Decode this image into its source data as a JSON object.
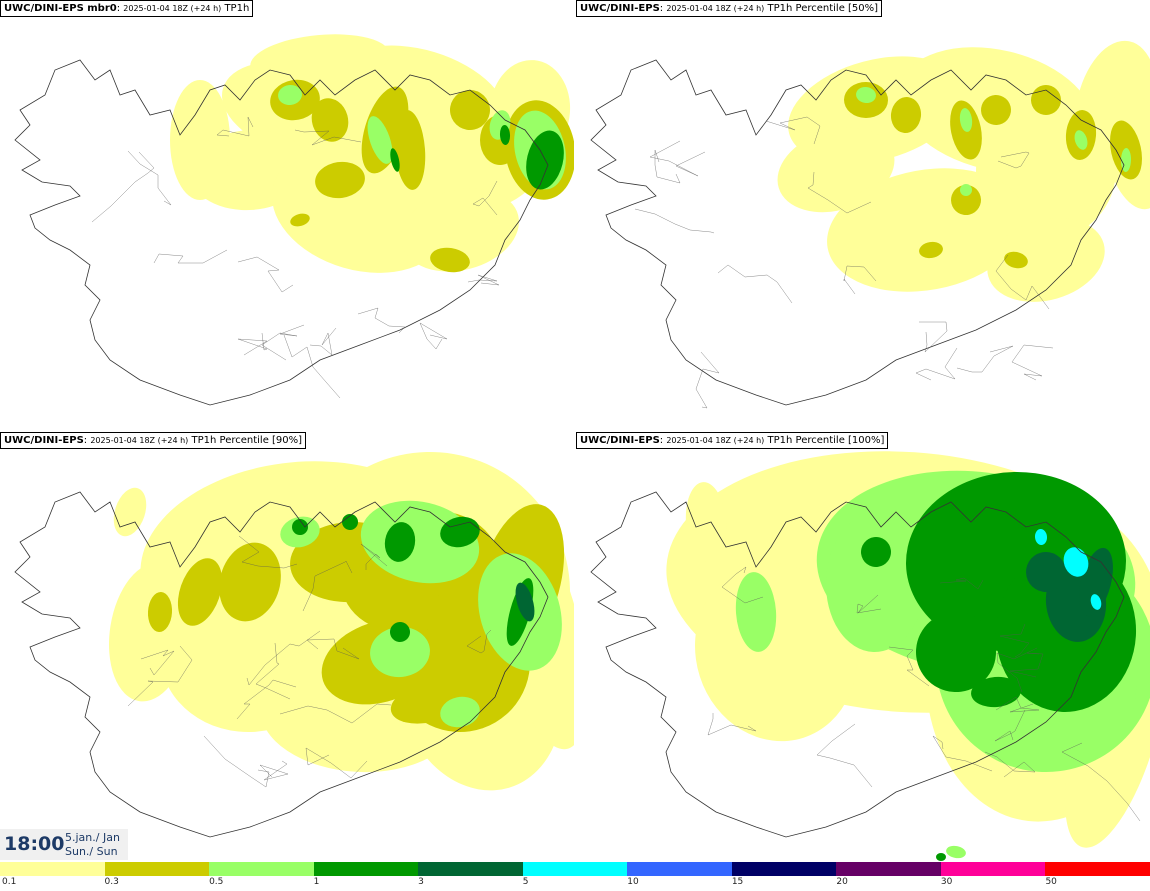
{
  "panels": [
    {
      "model": "UWC/DINI-EPS mbr0",
      "run": "2025-01-04 18Z (+24 h)",
      "field": "TP1h",
      "variant": "mbr0"
    },
    {
      "model": "UWC/DINI-EPS",
      "run": "2025-01-04 18Z (+24 h)",
      "field": "TP1h Percentile [50%]",
      "variant": "p50"
    },
    {
      "model": "UWC/DINI-EPS",
      "run": "2025-01-04 18Z (+24 h)",
      "field": "TP1h Percentile [90%]",
      "variant": "p90"
    },
    {
      "model": "UWC/DINI-EPS",
      "run": "2025-01-04 18Z (+24 h)",
      "field": "TP1h Percentile [100%]",
      "variant": "p100"
    }
  ],
  "valid_time": {
    "time": "18:00",
    "date_line1": "5.jan./ Jan",
    "date_line2": "Sun./ Sun"
  },
  "legend": {
    "colors": [
      "#ffff99",
      "#cccc00",
      "#99ff66",
      "#009900",
      "#006633",
      "#00ffff",
      "#3366ff",
      "#000066",
      "#660066",
      "#ff0099",
      "#ff0000"
    ],
    "ticks": [
      "0.1",
      "0.3",
      "0.5",
      "1",
      "3",
      "5",
      "10",
      "15",
      "20",
      "30",
      "50"
    ]
  }
}
